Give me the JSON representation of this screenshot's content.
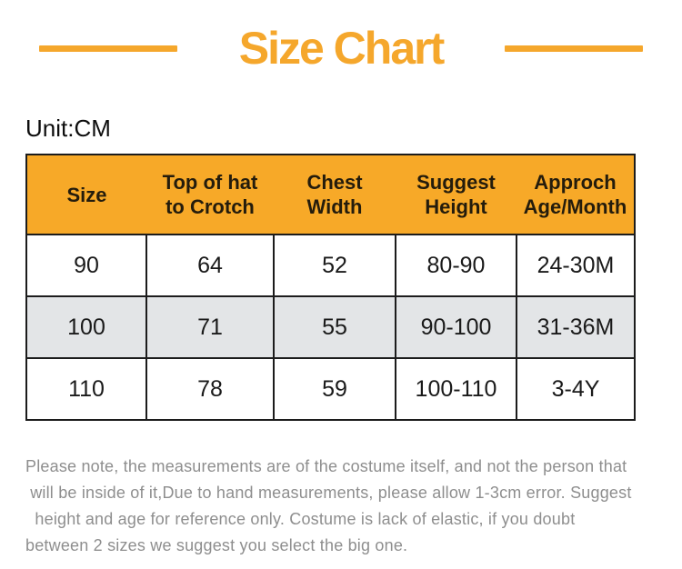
{
  "title": "Size Chart",
  "unit_label": "Unit:CM",
  "colors": {
    "accent": "#F5A72C",
    "header_bg": "#F7A928",
    "alt_row": "#E3E5E7",
    "border": "#1c1c1c",
    "note_text": "#8E8E8E"
  },
  "table": {
    "headers": [
      "Size",
      "Top of hat to Crotch",
      "Chest Width",
      "Suggest Height",
      "Approch Age/Month"
    ],
    "rows": [
      [
        "90",
        "64",
        "52",
        "80-90",
        "24-30M"
      ],
      [
        "100",
        "71",
        "55",
        "90-100",
        "31-36M"
      ],
      [
        "110",
        "78",
        "59",
        "100-110",
        "3-4Y"
      ]
    ]
  },
  "note_lines": [
    "Please note, the measurements are of the costume itself, and not the person that",
    " will be inside of it,Due to hand measurements, please allow 1-3cm error. Suggest",
    "  height and age for reference only. Costume is lack of elastic, if you doubt",
    "between 2 sizes we suggest you select the big one."
  ]
}
